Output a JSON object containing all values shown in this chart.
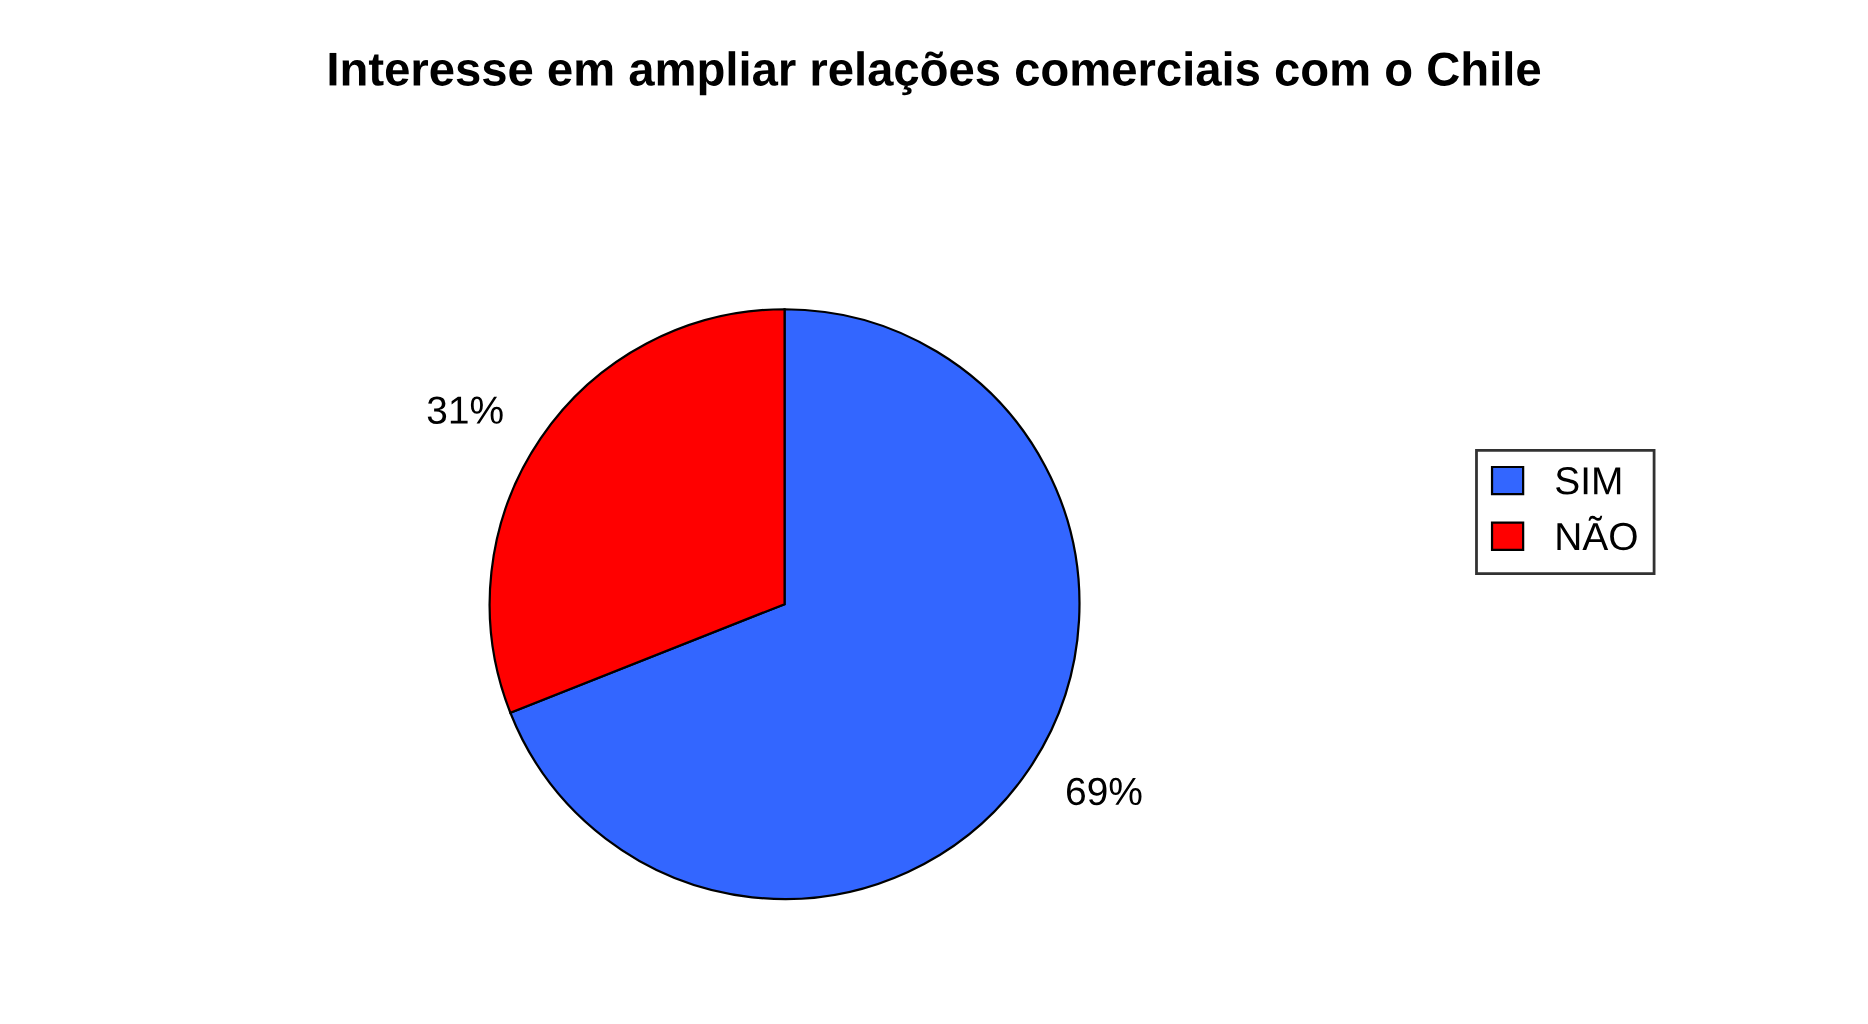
{
  "chart_data": {
    "type": "pie",
    "title": "Interesse em ampliar relações comerciais com o Chile",
    "categories": [
      "SIM",
      "NÃO"
    ],
    "values": [
      69,
      31
    ],
    "colors": [
      "#3366ff",
      "#ff0000"
    ],
    "value_labels": [
      "69%",
      "31%"
    ],
    "legend": "right"
  }
}
